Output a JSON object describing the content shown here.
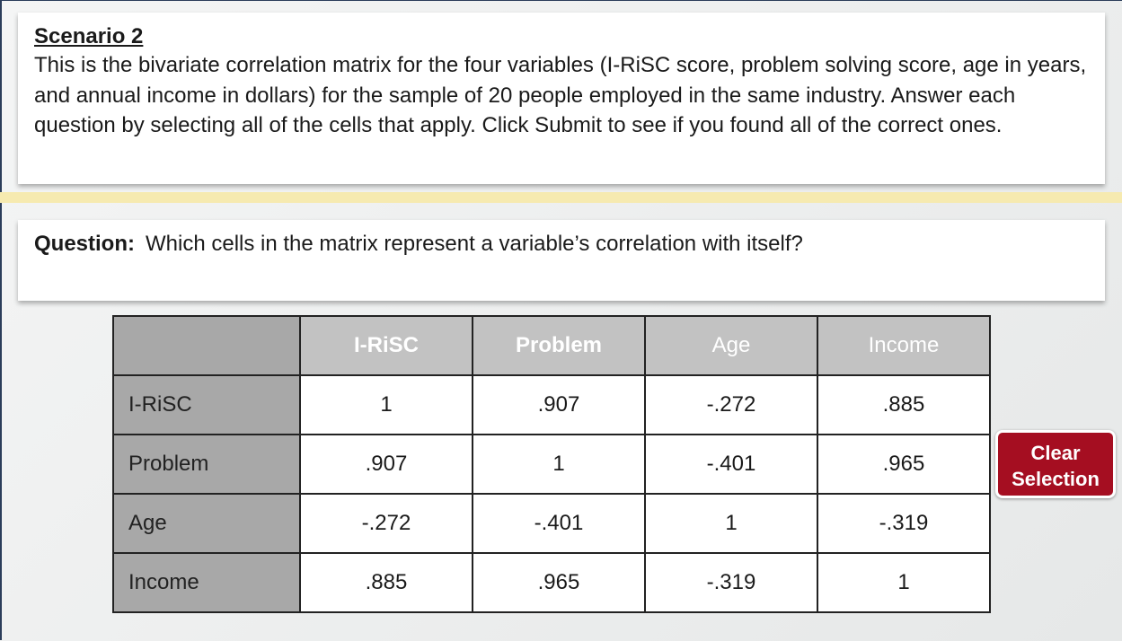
{
  "scenario": {
    "title": "Scenario 2",
    "text": "This is the bivariate correlation matrix for the four variables (I-RiSC score, problem solving score, age in years, and annual income in dollars) for the sample of 20 people employed in the same industry. Answer each question by selecting all of the cells that apply. Click Submit to see if you found all of the correct ones."
  },
  "question": {
    "label": "Question:",
    "text": "Which cells in the matrix represent a variable’s correlation with itself?"
  },
  "table": {
    "header": [
      "I-RiSC",
      "Problem",
      "Age",
      "Income"
    ],
    "rows": [
      [
        "I-RiSC",
        "1",
        ".907",
        "-.272",
        ".885"
      ],
      [
        "Problem",
        ".907",
        "1",
        "-.401",
        ".965"
      ],
      [
        "Age",
        "-.272",
        "-.401",
        "1",
        "-.319"
      ],
      [
        "Income",
        ".885",
        ".965",
        "-.319",
        "1"
      ]
    ]
  },
  "button": {
    "lines": [
      "Clear",
      "Selection"
    ]
  }
}
